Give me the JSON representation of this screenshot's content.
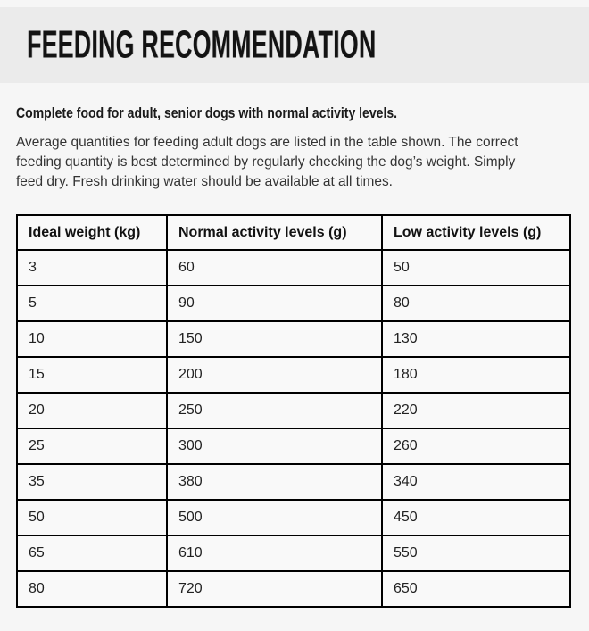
{
  "colors": {
    "page_background": "#f6f6f6",
    "band_background": "#ebebeb",
    "table_cell_background": "#f9f9f9",
    "table_border": "#000000",
    "heading_text": "#131313",
    "body_text": "#333333"
  },
  "header": {
    "title": "FEEDING RECOMMENDATION"
  },
  "intro": {
    "subtitle": "Complete food for adult, senior dogs with normal activity levels.",
    "paragraph_lines": [
      "Average quantities for feeding adult dogs are listed in the table shown. The correct",
      "feeding quantity is best determined by regularly checking the dog’s weight. Simply",
      "feed dry. Fresh drinking water should be available at all times."
    ]
  },
  "feeding_table": {
    "columns": [
      "Ideal weight (kg)",
      "Normal activity levels (g)",
      "Low activity levels (g)"
    ],
    "rows": [
      [
        "3",
        "60",
        "50"
      ],
      [
        "5",
        "90",
        "80"
      ],
      [
        "10",
        "150",
        "130"
      ],
      [
        "15",
        "200",
        "180"
      ],
      [
        "20",
        "250",
        "220"
      ],
      [
        "25",
        "300",
        "260"
      ],
      [
        "35",
        "380",
        "340"
      ],
      [
        "50",
        "500",
        "450"
      ],
      [
        "65",
        "610",
        "550"
      ],
      [
        "80",
        "720",
        "650"
      ]
    ]
  }
}
